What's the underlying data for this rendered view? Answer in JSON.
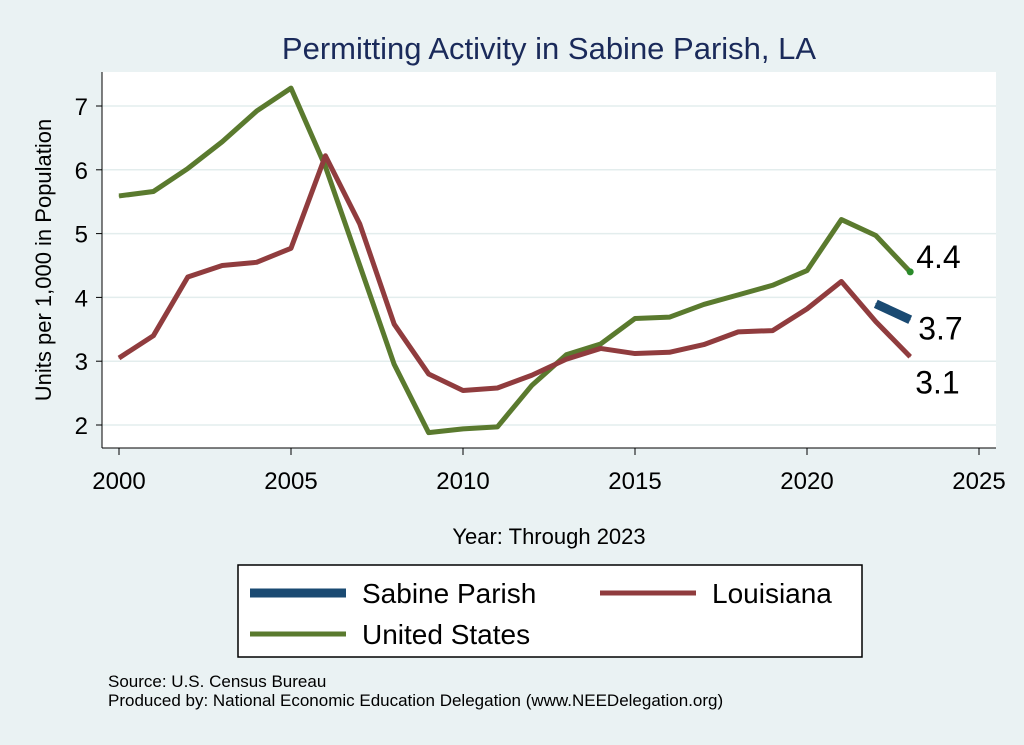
{
  "chart_data": {
    "type": "line",
    "title": "Permitting Activity in Sabine Parish, LA",
    "xlabel": "Year: Through 2023",
    "ylabel": "Units per 1,000 in Population",
    "xlim": [
      2000,
      2025
    ],
    "ylim": [
      1.7,
      7.5
    ],
    "xticks": [
      2000,
      2005,
      2010,
      2015,
      2020,
      2025
    ],
    "yticks": [
      2,
      3,
      4,
      5,
      6,
      7
    ],
    "grid": true,
    "series": [
      {
        "name": "Sabine Parish",
        "color": "#1a4a72",
        "x": [
          2022,
          2023
        ],
        "values": [
          3.9,
          3.65
        ],
        "end_label": "3.7"
      },
      {
        "name": "Louisiana",
        "color": "#903c3e",
        "x": [
          2000,
          2001,
          2002,
          2003,
          2004,
          2005,
          2006,
          2007,
          2008,
          2009,
          2010,
          2011,
          2012,
          2013,
          2014,
          2015,
          2016,
          2017,
          2018,
          2019,
          2020,
          2021,
          2022,
          2023
        ],
        "values": [
          3.05,
          3.4,
          4.32,
          4.5,
          4.55,
          4.77,
          6.22,
          5.15,
          3.58,
          2.8,
          2.54,
          2.58,
          2.78,
          3.03,
          3.2,
          3.12,
          3.14,
          3.26,
          3.46,
          3.48,
          3.82,
          4.25,
          3.62,
          3.07
        ],
        "end_label": "3.1"
      },
      {
        "name": "United States",
        "color": "#5a7a2e",
        "x": [
          2000,
          2001,
          2002,
          2003,
          2004,
          2005,
          2006,
          2007,
          2008,
          2009,
          2010,
          2011,
          2012,
          2013,
          2014,
          2015,
          2016,
          2017,
          2018,
          2019,
          2020,
          2021,
          2022,
          2023
        ],
        "values": [
          5.59,
          5.66,
          6.02,
          6.44,
          6.92,
          7.28,
          6.05,
          4.5,
          2.95,
          1.88,
          1.94,
          1.97,
          2.62,
          3.1,
          3.27,
          3.67,
          3.69,
          3.89,
          4.04,
          4.19,
          4.42,
          5.22,
          4.97,
          4.4
        ],
        "end_label": "4.4"
      }
    ],
    "legend": {
      "placement": "bottom-center",
      "entries": [
        "Sabine Parish",
        "Louisiana",
        "United States"
      ]
    }
  },
  "footer": {
    "source": "Source: U.S. Census Bureau",
    "produced": "Produced by: National Economic Education Delegation (www.NEEDelegation.org)"
  }
}
